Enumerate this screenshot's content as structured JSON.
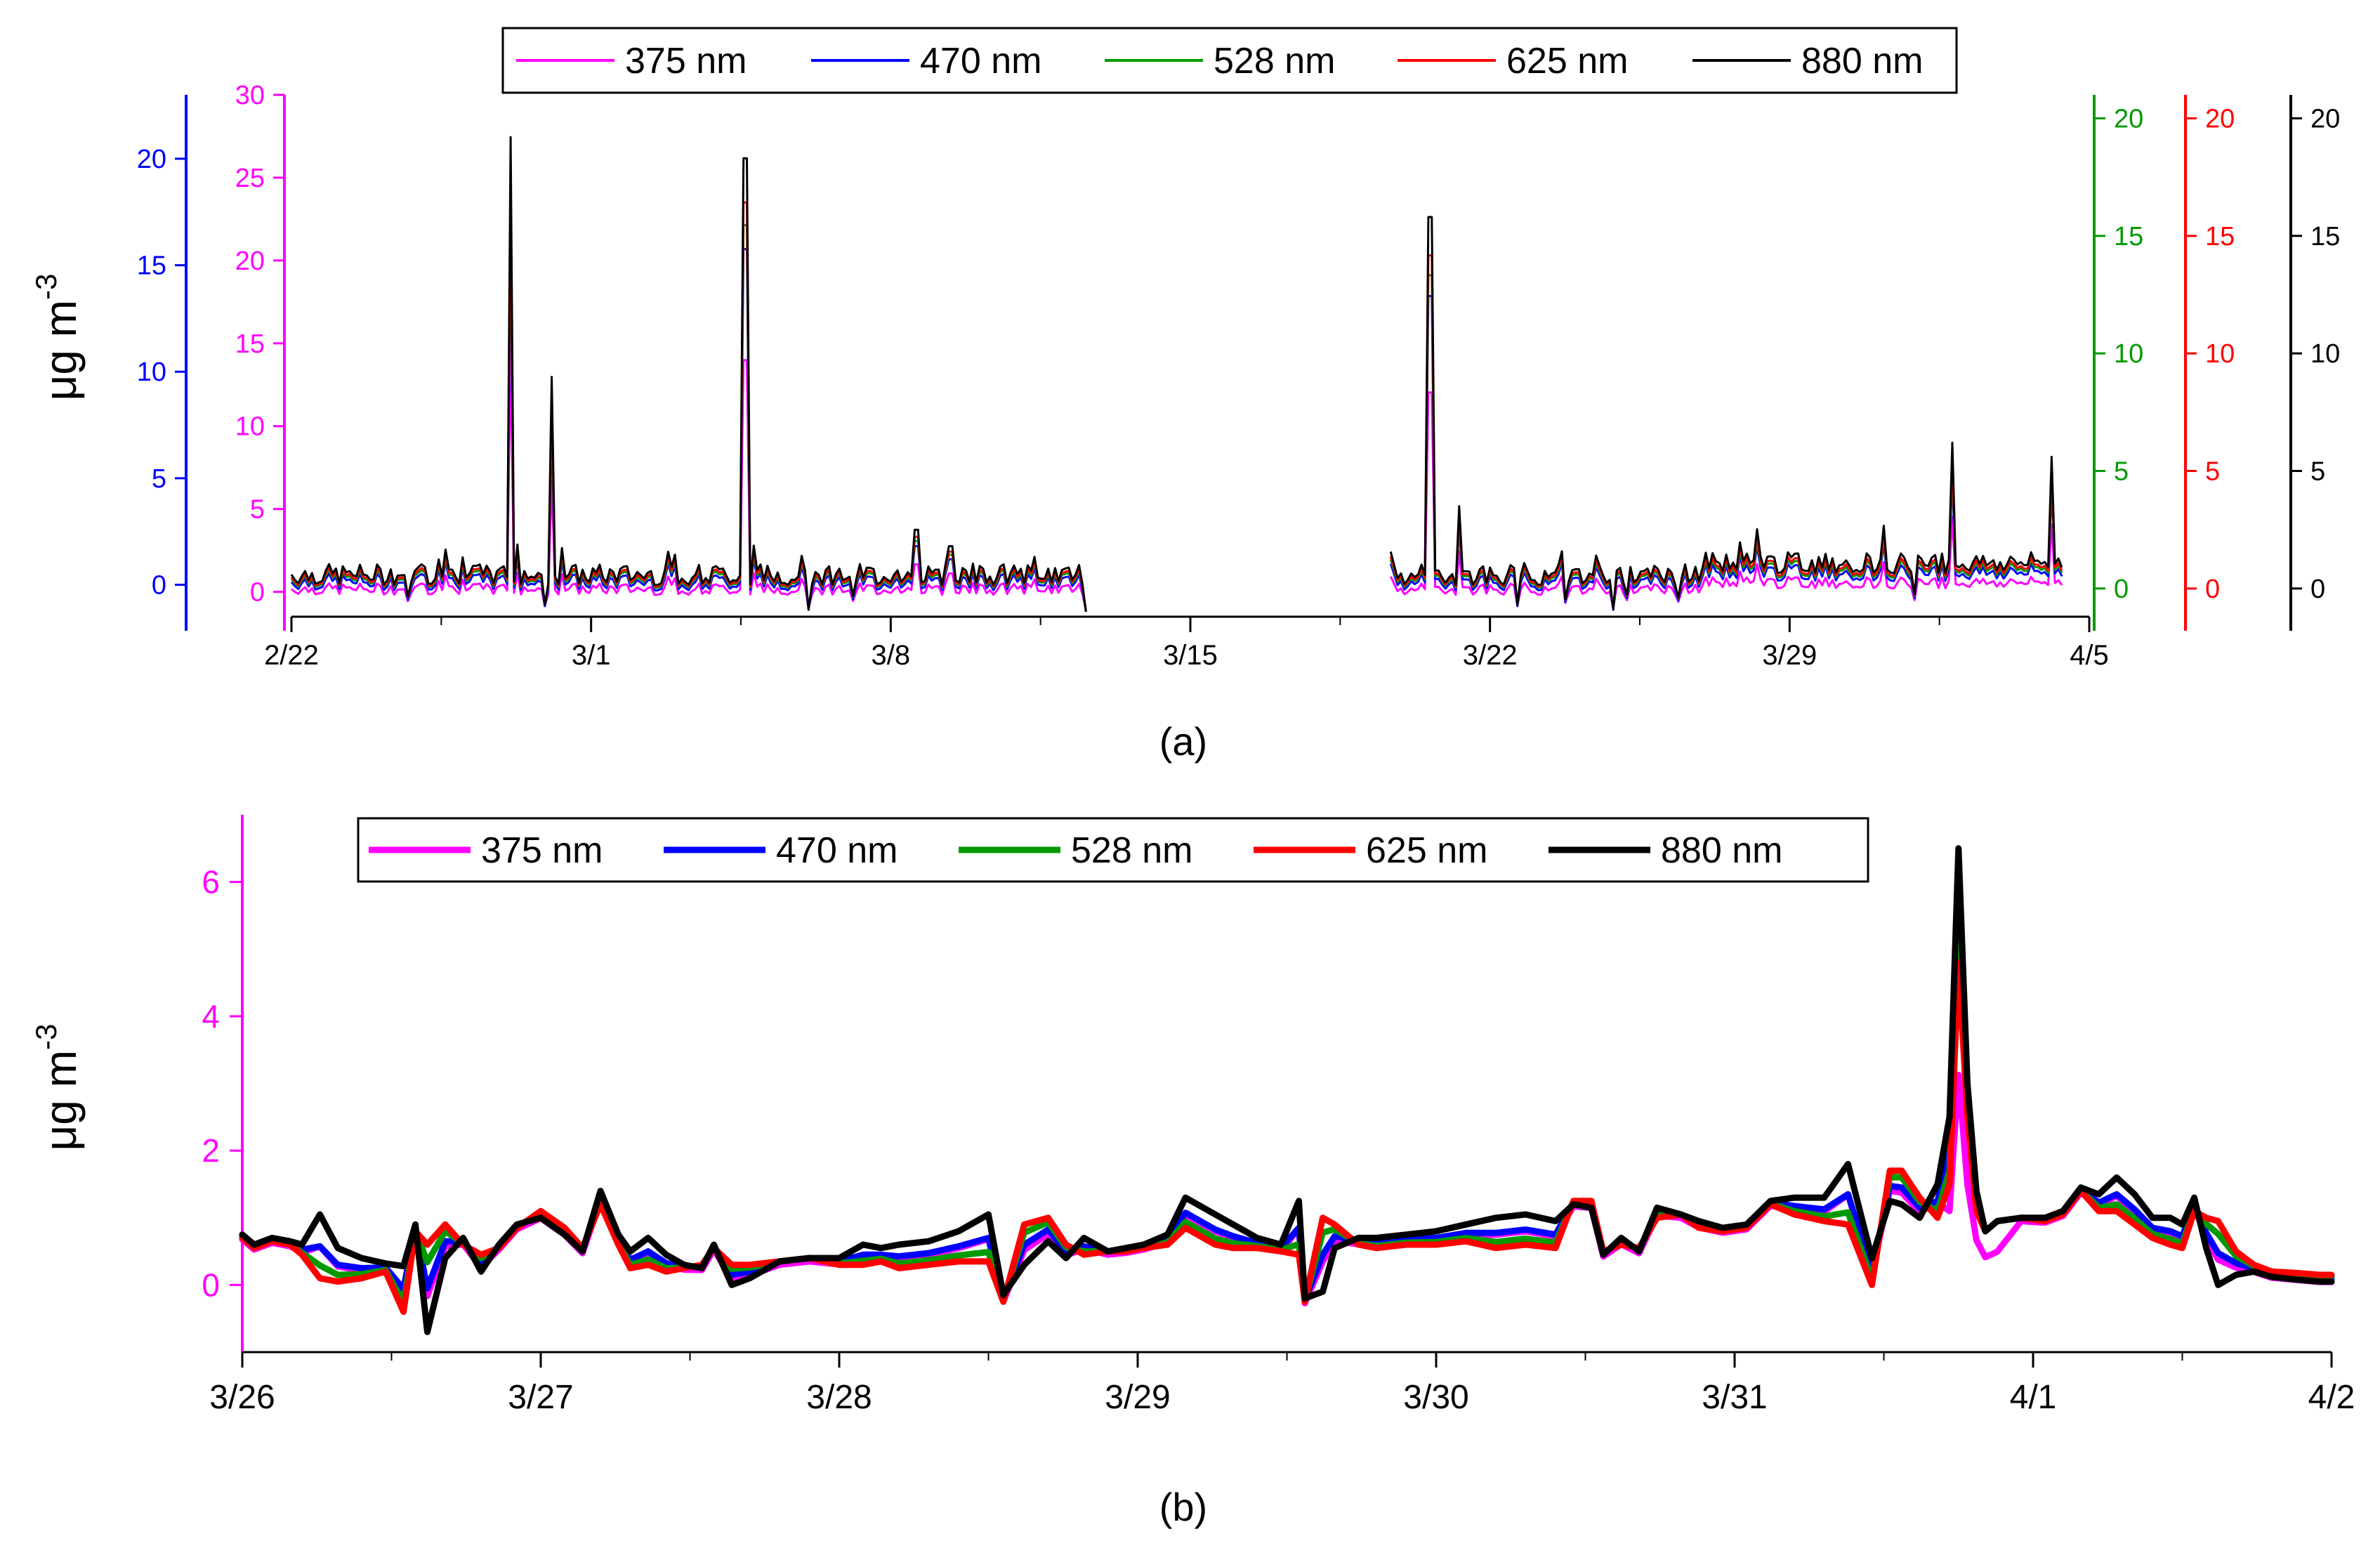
{
  "colors": {
    "375": "#ff00ff",
    "470": "#0000ff",
    "528": "#009a00",
    "625": "#ff0000",
    "880": "#000000"
  },
  "chart_data": [
    {
      "panel": "(a)",
      "type": "line",
      "ylabel": "μg m",
      "ylabel_sup": "-3",
      "x_ticks": [
        "2/22",
        "3/1",
        "3/8",
        "3/15",
        "3/22",
        "3/29",
        "4/5"
      ],
      "x_tick_days": [
        0,
        7,
        14,
        21,
        28,
        35,
        42
      ],
      "legend": [
        "375 nm",
        "470 nm",
        "528 nm",
        "625 nm",
        "880 nm"
      ],
      "axes": {
        "blue_left": {
          "color": "#0000ff",
          "ticks": [
            "0",
            "5",
            "10",
            "15",
            "20"
          ],
          "range": [
            -1.5,
            23
          ]
        },
        "magenta_left": {
          "color": "#ff00ff",
          "ticks": [
            "0",
            "5",
            "10",
            "15",
            "20",
            "25",
            "30"
          ],
          "range": [
            -1.5,
            30
          ]
        },
        "green_right": {
          "color": "#009a00",
          "ticks": [
            "0",
            "5",
            "10",
            "15",
            "20"
          ],
          "range": [
            -1.2,
            21
          ]
        },
        "red_right": {
          "color": "#ff0000",
          "ticks": [
            "0",
            "5",
            "10",
            "15",
            "20"
          ],
          "range": [
            -1.2,
            21
          ]
        },
        "black_right": {
          "color": "#000000",
          "ticks": [
            "0",
            "5",
            "10",
            "15",
            "20"
          ],
          "range": [
            -1.2,
            21
          ]
        }
      },
      "data_gap_days": [
        18.6,
        25.6
      ],
      "data_end_day": 41.4,
      "baseline_880": 0.6,
      "spikes_880": [
        {
          "day": 5.1,
          "value": 19.2
        },
        {
          "day": 6.1,
          "value": 9.0
        },
        {
          "day": 10.6,
          "value": 18.3
        },
        {
          "day": 14.6,
          "value": 2.5
        },
        {
          "day": 15.4,
          "value": 1.8
        },
        {
          "day": 26.6,
          "value": 15.8
        },
        {
          "day": 27.3,
          "value": 3.5
        },
        {
          "day": 38.8,
          "value": 6.2
        },
        {
          "day": 41.1,
          "value": 5.6
        }
      ]
    },
    {
      "panel": "(b)",
      "type": "line",
      "ylabel": "μg m",
      "ylabel_sup": "-3",
      "x_ticks": [
        "3/26",
        "3/27",
        "3/28",
        "3/29",
        "3/30",
        "3/31",
        "4/1",
        "4/2"
      ],
      "x_tick_days": [
        0,
        1,
        2,
        3,
        4,
        5,
        6,
        7
      ],
      "y_ticks": [
        "0",
        "2",
        "4",
        "6"
      ],
      "y_tick_values": [
        0,
        2,
        4,
        6
      ],
      "ylim": [
        -1,
        7
      ],
      "legend": [
        "375 nm",
        "470 nm",
        "528 nm",
        "625 nm",
        "880 nm"
      ],
      "series": [
        {
          "name": "880 nm",
          "x": [
            0,
            0.04,
            0.1,
            0.16,
            0.2,
            0.26,
            0.32,
            0.4,
            0.48,
            0.54,
            0.58,
            0.62,
            0.68,
            0.74,
            0.8,
            0.86,
            0.92,
            1.0,
            1.08,
            1.14,
            1.2,
            1.26,
            1.3,
            1.36,
            1.42,
            1.48,
            1.54,
            1.58,
            1.64,
            1.7,
            1.8,
            1.9,
            2.0,
            2.08,
            2.14,
            2.2,
            2.3,
            2.4,
            2.5,
            2.55,
            2.62,
            2.7,
            2.76,
            2.82,
            2.9,
            2.96,
            3.02,
            3.1,
            3.16,
            3.26,
            3.32,
            3.4,
            3.48,
            3.54,
            3.56,
            3.62,
            3.66,
            3.74,
            3.8,
            3.9,
            4.0,
            4.1,
            4.2,
            4.3,
            4.4,
            4.46,
            4.52,
            4.56,
            4.62,
            4.68,
            4.74,
            4.82,
            4.88,
            4.96,
            5.04,
            5.12,
            5.2,
            5.3,
            5.38,
            5.46,
            5.52,
            5.56,
            5.62,
            5.68,
            5.72,
            5.75,
            5.78,
            5.81,
            5.84,
            5.88,
            5.96,
            6.04,
            6.1,
            6.16,
            6.22,
            6.28,
            6.34,
            6.4,
            6.46,
            6.5,
            6.54,
            6.58,
            6.62,
            6.68,
            6.74,
            6.8,
            6.88,
            6.96,
            7.0
          ],
          "values": [
            0.75,
            0.6,
            0.7,
            0.65,
            0.6,
            1.05,
            0.55,
            0.4,
            0.32,
            0.28,
            0.9,
            -0.7,
            0.4,
            0.7,
            0.2,
            0.6,
            0.9,
            1.0,
            0.75,
            0.5,
            1.4,
            0.75,
            0.5,
            0.7,
            0.45,
            0.3,
            0.25,
            0.6,
            0.0,
            0.1,
            0.35,
            0.4,
            0.4,
            0.6,
            0.55,
            0.6,
            0.65,
            0.8,
            1.05,
            -0.15,
            0.3,
            0.65,
            0.4,
            0.7,
            0.5,
            0.55,
            0.6,
            0.75,
            1.3,
            1.05,
            0.9,
            0.7,
            0.6,
            1.25,
            -0.2,
            -0.1,
            0.55,
            0.7,
            0.7,
            0.75,
            0.8,
            0.9,
            1.0,
            1.05,
            0.95,
            1.2,
            1.15,
            0.45,
            0.7,
            0.5,
            1.15,
            1.05,
            0.95,
            0.85,
            0.9,
            1.25,
            1.3,
            1.3,
            1.8,
            0.4,
            1.25,
            1.2,
            1.0,
            1.5,
            2.5,
            6.5,
            3.0,
            1.4,
            0.8,
            0.95,
            1.0,
            1.0,
            1.1,
            1.45,
            1.35,
            1.6,
            1.35,
            1.0,
            1.0,
            0.9,
            1.3,
            0.55,
            0.0,
            0.15,
            0.2,
            0.12,
            0.08,
            0.05,
            0.05
          ]
        },
        {
          "name": "625 nm",
          "x": [
            0,
            0.04,
            0.1,
            0.16,
            0.2,
            0.26,
            0.32,
            0.4,
            0.48,
            0.54,
            0.58,
            0.62,
            0.68,
            0.74,
            0.8,
            0.86,
            0.92,
            1.0,
            1.08,
            1.14,
            1.2,
            1.26,
            1.3,
            1.36,
            1.42,
            1.48,
            1.54,
            1.58,
            1.64,
            1.7,
            1.8,
            1.9,
            2.0,
            2.08,
            2.14,
            2.2,
            2.3,
            2.4,
            2.5,
            2.55,
            2.62,
            2.7,
            2.76,
            2.82,
            2.9,
            2.96,
            3.02,
            3.1,
            3.16,
            3.26,
            3.32,
            3.4,
            3.48,
            3.54,
            3.56,
            3.62,
            3.66,
            3.74,
            3.8,
            3.9,
            4.0,
            4.1,
            4.2,
            4.3,
            4.4,
            4.46,
            4.52,
            4.56,
            4.62,
            4.68,
            4.74,
            4.82,
            4.88,
            4.96,
            5.04,
            5.12,
            5.2,
            5.3,
            5.38,
            5.46,
            5.52,
            5.56,
            5.62,
            5.68,
            5.72,
            5.75,
            5.78,
            5.81,
            5.84,
            5.88,
            5.96,
            6.04,
            6.1,
            6.16,
            6.22,
            6.28,
            6.34,
            6.4,
            6.46,
            6.5,
            6.54,
            6.58,
            6.62,
            6.68,
            6.74,
            6.8,
            6.88,
            6.96,
            7.0
          ],
          "values": [
            0.7,
            0.55,
            0.65,
            0.6,
            0.45,
            0.1,
            0.05,
            0.1,
            0.2,
            -0.4,
            0.8,
            0.6,
            0.9,
            0.6,
            0.45,
            0.55,
            0.85,
            1.1,
            0.85,
            0.55,
            1.2,
            0.6,
            0.25,
            0.3,
            0.2,
            0.25,
            0.3,
            0.55,
            0.3,
            0.3,
            0.35,
            0.4,
            0.3,
            0.3,
            0.35,
            0.25,
            0.3,
            0.35,
            0.35,
            -0.25,
            0.9,
            1.0,
            0.6,
            0.45,
            0.5,
            0.5,
            0.55,
            0.6,
            0.85,
            0.6,
            0.55,
            0.55,
            0.5,
            0.45,
            -0.25,
            1.0,
            0.9,
            0.6,
            0.55,
            0.6,
            0.6,
            0.65,
            0.55,
            0.6,
            0.55,
            1.25,
            1.25,
            0.5,
            0.6,
            0.55,
            1.0,
            1.05,
            0.85,
            0.8,
            0.85,
            1.2,
            1.05,
            0.95,
            0.9,
            0.0,
            1.7,
            1.7,
            1.3,
            1.0,
            1.5,
            4.8,
            2.5,
            1.1,
            0.8,
            0.95,
            1.0,
            0.95,
            1.05,
            1.4,
            1.1,
            1.1,
            0.9,
            0.7,
            0.6,
            0.55,
            1.1,
            1.0,
            0.95,
            0.5,
            0.3,
            0.2,
            0.18,
            0.15,
            0.15
          ]
        }
      ]
    }
  ]
}
